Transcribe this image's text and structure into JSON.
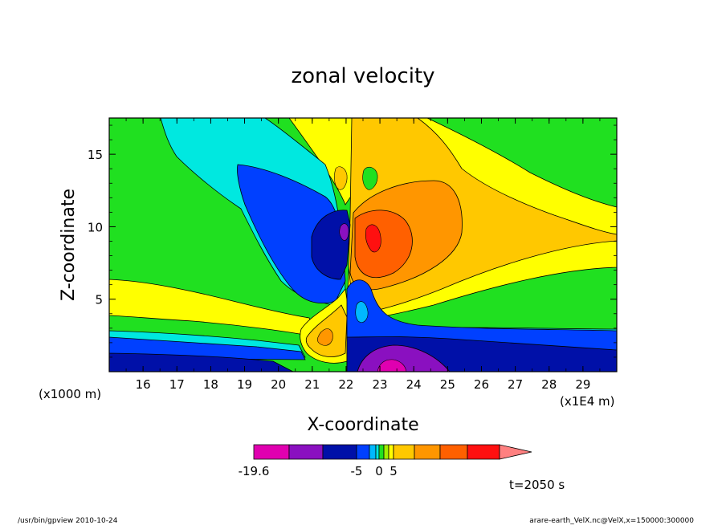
{
  "chart_data": {
    "type": "heatmap",
    "title": "zonal velocity",
    "xlabel": "X-coordinate",
    "ylabel": "Z-coordinate",
    "x_unit": "(x1E4 m)",
    "y_unit": "(x1000 m)",
    "x_ticks": [
      "16",
      "17",
      "18",
      "19",
      "20",
      "21",
      "22",
      "23",
      "24",
      "25",
      "26",
      "27",
      "28",
      "29"
    ],
    "y_ticks": [
      "5",
      "10",
      "15"
    ],
    "xlim": [
      15.0,
      30.0
    ],
    "ylim": [
      0.0,
      17.5
    ],
    "colorbar": {
      "labels": [
        "-19.6",
        "-5",
        "0",
        "5"
      ],
      "colors": [
        "#e000b0",
        "#8a10c0",
        "#0010a8",
        "#0040ff",
        "#00b8ff",
        "#00e8e0",
        "#20e020",
        "#a0f000",
        "#ffff00",
        "#ffc800",
        "#ff9600",
        "#ff6000",
        "#ff1010",
        "#ff8080"
      ]
    },
    "time_label": "t=2050 s",
    "footer_left": "/usr/bin/gpview   2010-10-24",
    "footer_right": "arare-earth_VelX.nc@VelX,x=150000:300000"
  }
}
